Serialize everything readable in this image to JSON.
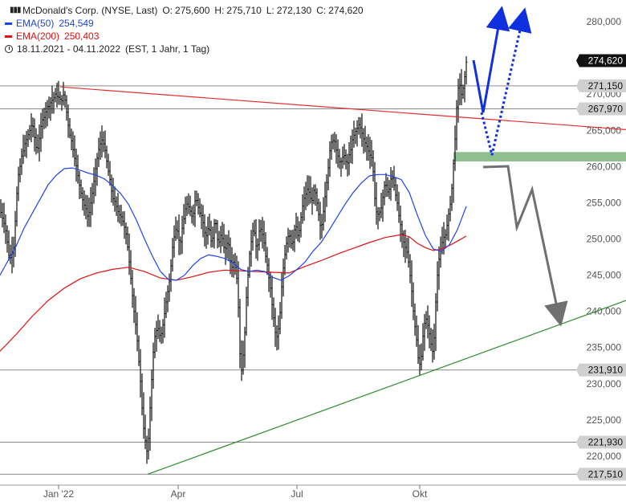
{
  "legend": {
    "title": "McDonald's Corp. (NYSE, Last)",
    "open_label": "O:",
    "open": "275,600",
    "high_label": "H:",
    "high": "275,710",
    "low_label": "L:",
    "low": "272,130",
    "close_label": "C:",
    "close": "274,620",
    "ema50_label": "EMA(50)",
    "ema50_value": "254,549",
    "ema200_label": "EMA(200)",
    "ema200_value": "250,403",
    "period": "18.11.2021 - 04.11.2022",
    "period_info": "(EST, 1 Jahr, 1 Tag)"
  },
  "colors": {
    "ema50": "#1f45e6",
    "ema200": "#e01010",
    "resistance": "#e03030",
    "support": "#2e8b2e",
    "zone": "#8fbf8f",
    "arrow_blue": "#1030e0",
    "arrow_gray": "#707070",
    "last_badge": "#111111"
  },
  "chart_data": {
    "type": "bar",
    "title": "McDonald's Corp. (NYSE, Last)",
    "ylim": [
      216,
      283
    ],
    "y_ticks": [
      "220,000",
      "225,000",
      "230,000",
      "235,000",
      "240,000",
      "245,000",
      "250,000",
      "255,000",
      "260,000",
      "265,000",
      "270,000",
      "275,000",
      "280,000"
    ],
    "x_ticks": [
      "Jan '22",
      "Apr",
      "Jul",
      "Okt"
    ],
    "price_levels": [
      "271,150",
      "267,970",
      "231,910",
      "221,930",
      "217,510"
    ],
    "last_price": "274,620",
    "close_path": [
      [
        0,
        254
      ],
      [
        6,
        252
      ],
      [
        12,
        247
      ],
      [
        17,
        249
      ],
      [
        22,
        258
      ],
      [
        28,
        262
      ],
      [
        34,
        264
      ],
      [
        40,
        266
      ],
      [
        46,
        262
      ],
      [
        52,
        266
      ],
      [
        58,
        268
      ],
      [
        64,
        269
      ],
      [
        70,
        270
      ],
      [
        76,
        269
      ],
      [
        80,
        270
      ],
      [
        86,
        265
      ],
      [
        92,
        262
      ],
      [
        98,
        258
      ],
      [
        104,
        255
      ],
      [
        110,
        253
      ],
      [
        116,
        257
      ],
      [
        122,
        262
      ],
      [
        128,
        264
      ],
      [
        134,
        260
      ],
      [
        140,
        256
      ],
      [
        146,
        254
      ],
      [
        152,
        253
      ],
      [
        158,
        250
      ],
      [
        162,
        246
      ],
      [
        166,
        241
      ],
      [
        170,
        237
      ],
      [
        174,
        232
      ],
      [
        178,
        225
      ],
      [
        181,
        222
      ],
      [
        184,
        220
      ],
      [
        188,
        229
      ],
      [
        192,
        236
      ],
      [
        196,
        238
      ],
      [
        200,
        236
      ],
      [
        204,
        239
      ],
      [
        208,
        242
      ],
      [
        212,
        245
      ],
      [
        216,
        250
      ],
      [
        220,
        252
      ],
      [
        224,
        249
      ],
      [
        228,
        252
      ],
      [
        232,
        255
      ],
      [
        236,
        254
      ],
      [
        240,
        253
      ],
      [
        244,
        256
      ],
      [
        248,
        254
      ],
      [
        252,
        253
      ],
      [
        256,
        250
      ],
      [
        260,
        252
      ],
      [
        264,
        249
      ],
      [
        268,
        253
      ],
      [
        272,
        249
      ],
      [
        276,
        251
      ],
      [
        280,
        248
      ],
      [
        284,
        250
      ],
      [
        288,
        246
      ],
      [
        292,
        247
      ],
      [
        296,
        244
      ],
      [
        300,
        231
      ],
      [
        304,
        235
      ],
      [
        308,
        244
      ],
      [
        312,
        249
      ],
      [
        316,
        252
      ],
      [
        320,
        248
      ],
      [
        324,
        252
      ],
      [
        328,
        250
      ],
      [
        332,
        247
      ],
      [
        336,
        244
      ],
      [
        340,
        240
      ],
      [
        344,
        236
      ],
      [
        348,
        238
      ],
      [
        352,
        245
      ],
      [
        356,
        249
      ],
      [
        360,
        251
      ],
      [
        364,
        249
      ],
      [
        368,
        252
      ],
      [
        372,
        250
      ],
      [
        376,
        254
      ],
      [
        380,
        256
      ],
      [
        384,
        257
      ],
      [
        388,
        255
      ],
      [
        392,
        257
      ],
      [
        396,
        254
      ],
      [
        400,
        251
      ],
      [
        404,
        255
      ],
      [
        408,
        259
      ],
      [
        412,
        263
      ],
      [
        416,
        264
      ],
      [
        420,
        262
      ],
      [
        424,
        260
      ],
      [
        428,
        262
      ],
      [
        432,
        260
      ],
      [
        436,
        262
      ],
      [
        440,
        264
      ],
      [
        444,
        265
      ],
      [
        448,
        266
      ],
      [
        452,
        264
      ],
      [
        456,
        263
      ],
      [
        460,
        262
      ],
      [
        464,
        261
      ],
      [
        468,
        254
      ],
      [
        472,
        253
      ],
      [
        476,
        255
      ],
      [
        480,
        258
      ],
      [
        484,
        256
      ],
      [
        488,
        259
      ],
      [
        492,
        257
      ],
      [
        496,
        254
      ],
      [
        500,
        251
      ],
      [
        504,
        249
      ],
      [
        508,
        248
      ],
      [
        512,
        244
      ],
      [
        516,
        239
      ],
      [
        520,
        235
      ],
      [
        522,
        232
      ],
      [
        525,
        234
      ],
      [
        528,
        238
      ],
      [
        532,
        239
      ],
      [
        536,
        236
      ],
      [
        540,
        234
      ],
      [
        544,
        244
      ],
      [
        548,
        248
      ],
      [
        552,
        250
      ],
      [
        556,
        251
      ],
      [
        560,
        254
      ],
      [
        563,
        257
      ],
      [
        566,
        262
      ],
      [
        569,
        268
      ],
      [
        572,
        272
      ],
      [
        575,
        270
      ],
      [
        578,
        271
      ],
      [
        581,
        274.6
      ]
    ],
    "ema50_path": [
      [
        0,
        245
      ],
      [
        10,
        247
      ],
      [
        20,
        249
      ],
      [
        30,
        251.5
      ],
      [
        40,
        253.5
      ],
      [
        50,
        255.5
      ],
      [
        60,
        257.5
      ],
      [
        70,
        258.8
      ],
      [
        80,
        259.7
      ],
      [
        90,
        259.8
      ],
      [
        100,
        259.5
      ],
      [
        110,
        259.1
      ],
      [
        120,
        258.8
      ],
      [
        130,
        258.3
      ],
      [
        140,
        257.4
      ],
      [
        150,
        256.3
      ],
      [
        160,
        254.8
      ],
      [
        170,
        252.6
      ],
      [
        180,
        250
      ],
      [
        190,
        247.6
      ],
      [
        200,
        245.5
      ],
      [
        210,
        244.4
      ],
      [
        220,
        244.3
      ],
      [
        230,
        245
      ],
      [
        240,
        246.3
      ],
      [
        250,
        247.3
      ],
      [
        260,
        247.8
      ],
      [
        270,
        247.6
      ],
      [
        280,
        247.3
      ],
      [
        290,
        246.7
      ],
      [
        300,
        245.8
      ],
      [
        310,
        245.5
      ],
      [
        320,
        245.7
      ],
      [
        330,
        245.5
      ],
      [
        340,
        244.7
      ],
      [
        350,
        244.3
      ],
      [
        360,
        244.9
      ],
      [
        370,
        245.8
      ],
      [
        380,
        246.8
      ],
      [
        390,
        248.3
      ],
      [
        400,
        249.5
      ],
      [
        410,
        251.2
      ],
      [
        420,
        253
      ],
      [
        430,
        254.8
      ],
      [
        440,
        256.4
      ],
      [
        450,
        257.7
      ],
      [
        460,
        258.7
      ],
      [
        470,
        258.9
      ],
      [
        480,
        258.9
      ],
      [
        490,
        258.6
      ],
      [
        500,
        258.2
      ],
      [
        510,
        256.4
      ],
      [
        520,
        253.3
      ],
      [
        530,
        250.5
      ],
      [
        540,
        248.6
      ],
      [
        550,
        248.3
      ],
      [
        560,
        249.2
      ],
      [
        570,
        251.3
      ],
      [
        581,
        254.5
      ]
    ],
    "ema200_path": [
      [
        0,
        234.5
      ],
      [
        20,
        236.8
      ],
      [
        40,
        239.3
      ],
      [
        60,
        241.5
      ],
      [
        80,
        243.2
      ],
      [
        100,
        244.5
      ],
      [
        120,
        245.3
      ],
      [
        140,
        245.8
      ],
      [
        160,
        246.1
      ],
      [
        180,
        245.5
      ],
      [
        200,
        244.6
      ],
      [
        220,
        244.3
      ],
      [
        240,
        244.8
      ],
      [
        260,
        245.4
      ],
      [
        280,
        245.7
      ],
      [
        300,
        245.6
      ],
      [
        320,
        245.5
      ],
      [
        340,
        245.4
      ],
      [
        360,
        245.3
      ],
      [
        380,
        246.2
      ],
      [
        400,
        247
      ],
      [
        420,
        247.9
      ],
      [
        440,
        248.7
      ],
      [
        460,
        249.5
      ],
      [
        480,
        250.2
      ],
      [
        500,
        250.6
      ],
      [
        510,
        250.3
      ],
      [
        520,
        249.4
      ],
      [
        530,
        248.8
      ],
      [
        540,
        248.4
      ],
      [
        550,
        248.6
      ],
      [
        560,
        249.1
      ],
      [
        570,
        249.7
      ],
      [
        581,
        250.4
      ]
    ],
    "resistance_line": {
      "start": 271.0,
      "end": 265.1
    },
    "support_line": {
      "start": 217.5,
      "end": 241.5
    },
    "horizontal_levels": [
      271.15,
      267.97,
      231.91,
      221.93,
      217.51
    ],
    "green_zone": [
      260.7,
      262.0
    ]
  }
}
